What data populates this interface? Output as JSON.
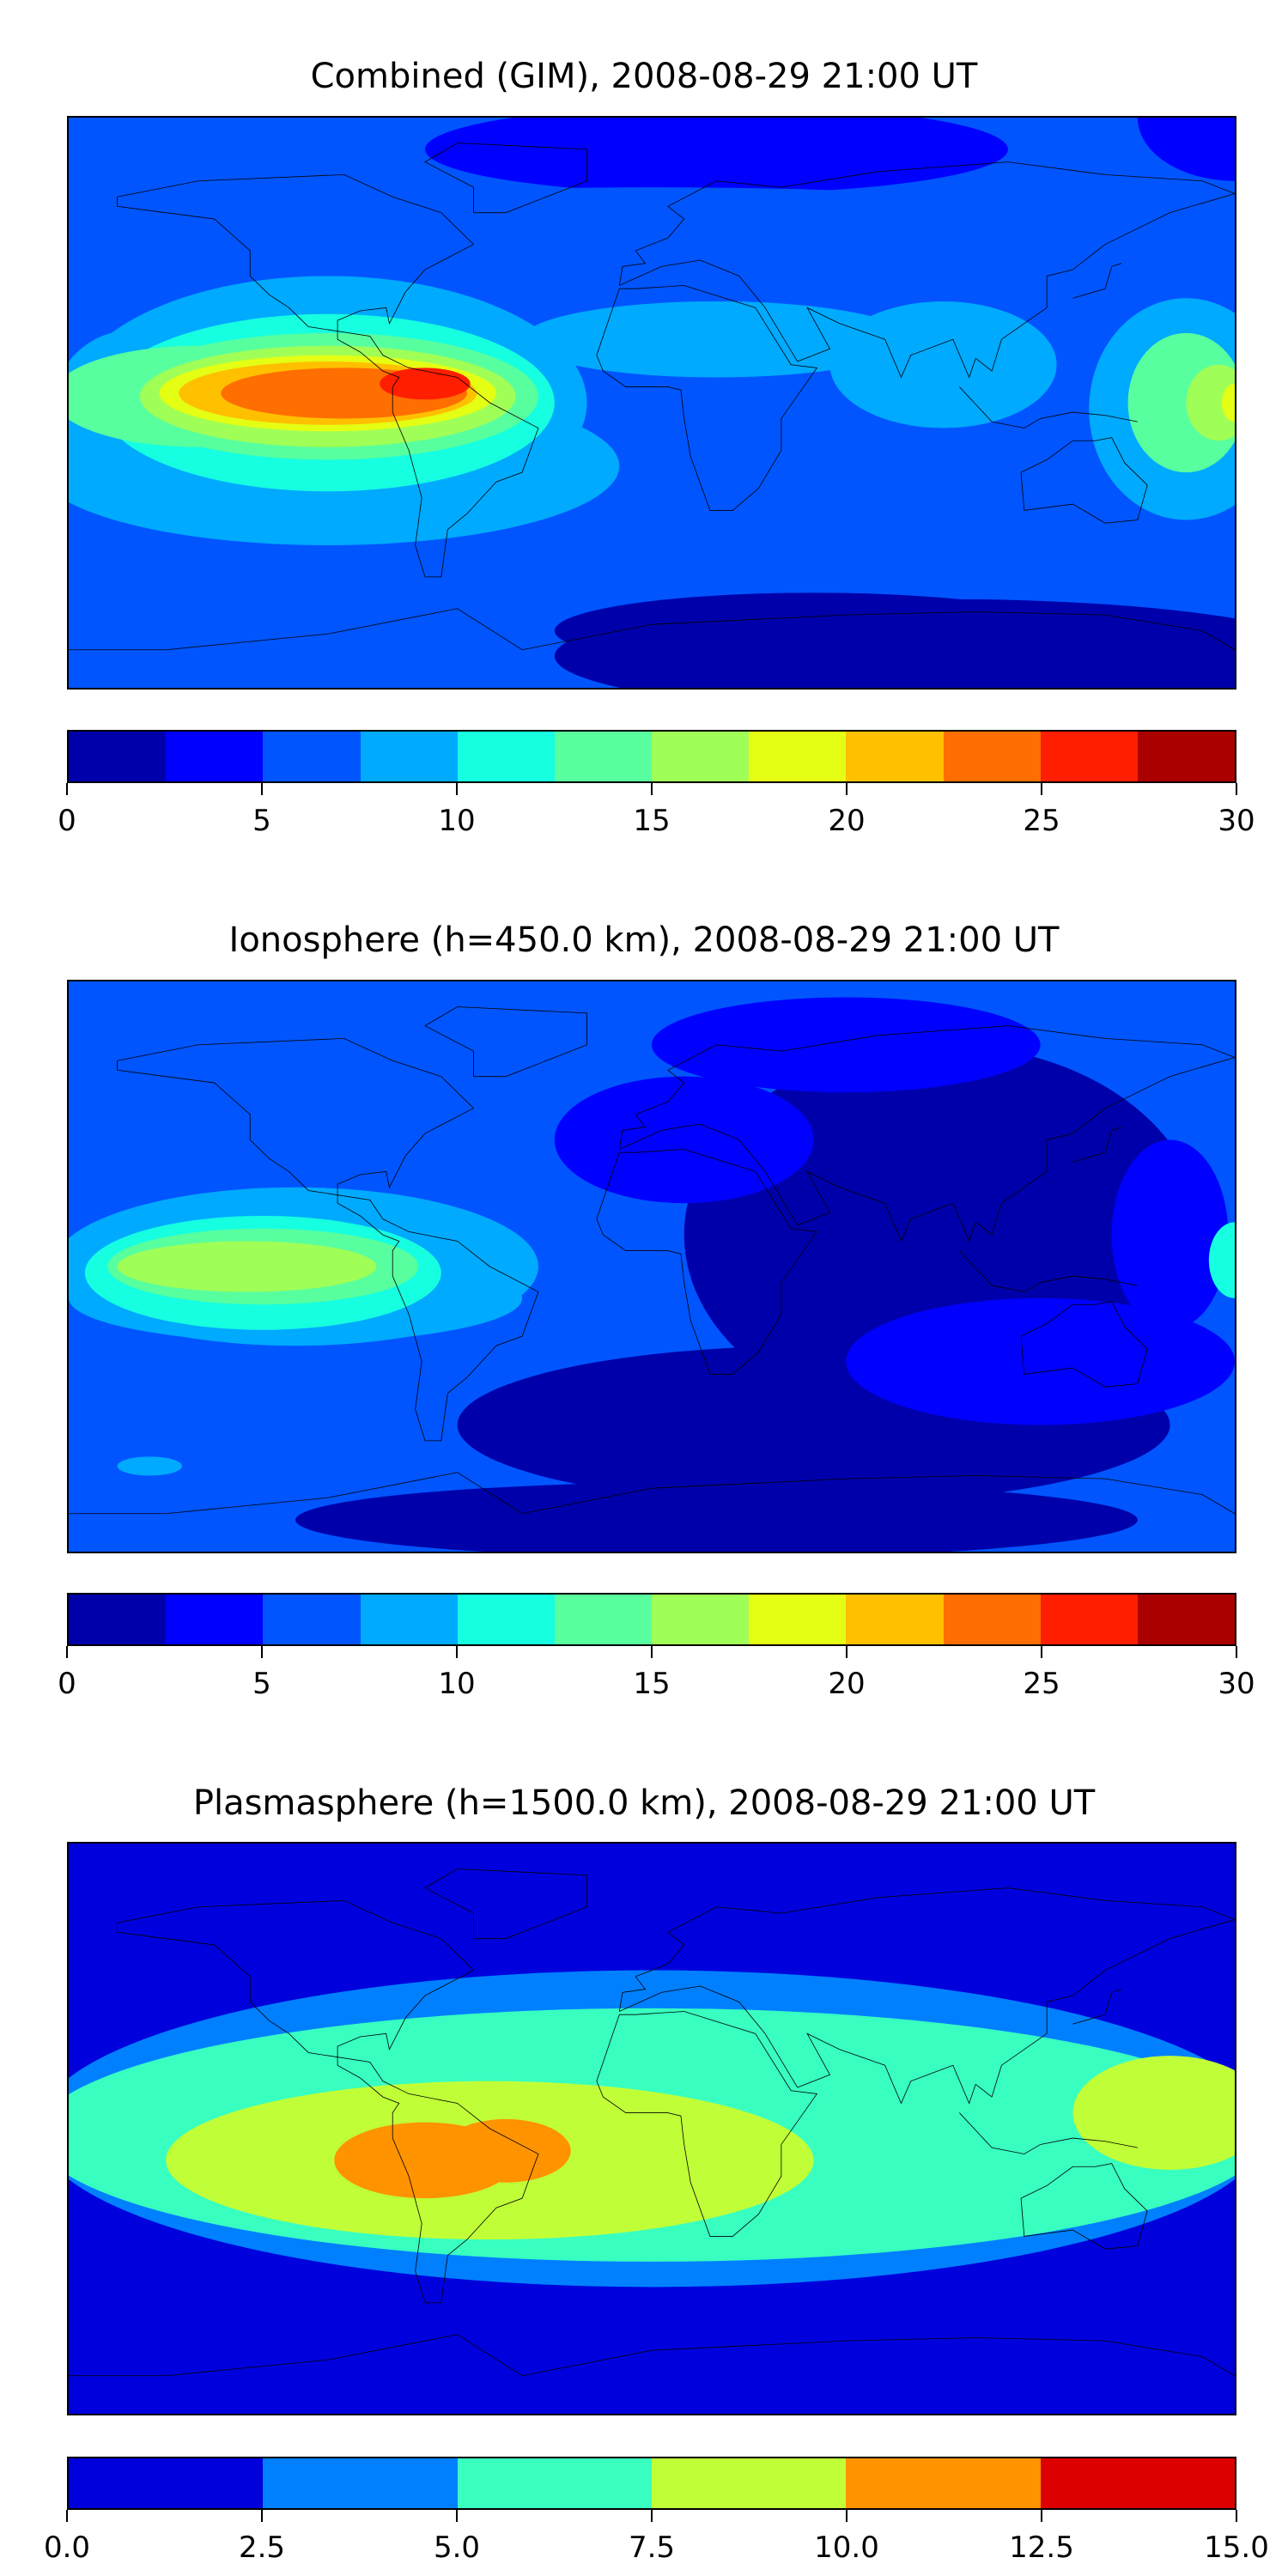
{
  "chart_data": [
    {
      "type": "heatmap",
      "title": "Combined (GIM), 2008-08-29 21:00 UT",
      "levels": [
        0,
        2.5,
        5,
        7.5,
        10,
        12.5,
        15,
        17.5,
        20,
        22.5,
        25,
        27.5,
        30
      ],
      "colors": [
        "#0000aa",
        "#0000ff",
        "#0055ff",
        "#00aaff",
        "#15ffe0",
        "#58ff9f",
        "#a0ff56",
        "#e4ff13",
        "#ffc000",
        "#ff6e00",
        "#ff1e00",
        "#ab0000"
      ],
      "ticks": [
        "0",
        "5",
        "10",
        "15",
        "20",
        "25",
        "30"
      ],
      "tick_values": [
        0,
        5,
        10,
        15,
        20,
        25,
        30
      ],
      "range": [
        0,
        30
      ]
    },
    {
      "type": "heatmap",
      "title": "Ionosphere  (h=450.0 km), 2008-08-29 21:00 UT",
      "levels": [
        0,
        2.5,
        5,
        7.5,
        10,
        12.5,
        15,
        17.5,
        20,
        22.5,
        25,
        27.5,
        30
      ],
      "colors": [
        "#0000aa",
        "#0000ff",
        "#0055ff",
        "#00aaff",
        "#15ffe0",
        "#58ff9f",
        "#a0ff56",
        "#e4ff13",
        "#ffc000",
        "#ff6e00",
        "#ff1e00",
        "#ab0000"
      ],
      "ticks": [
        "0",
        "5",
        "10",
        "15",
        "20",
        "25",
        "30"
      ],
      "tick_values": [
        0,
        5,
        10,
        15,
        20,
        25,
        30
      ],
      "range": [
        0,
        30
      ]
    },
    {
      "type": "heatmap",
      "title": "Plasmasphere (h=1500.0 km), 2008-08-29 21:00 UT",
      "levels": [
        0,
        2.5,
        5,
        7.5,
        10,
        12.5,
        15
      ],
      "colors": [
        "#0000dd",
        "#0080ff",
        "#38ffc0",
        "#c0ff38",
        "#ff9300",
        "#dd0000"
      ],
      "ticks": [
        "0.0",
        "2.5",
        "5.0",
        "7.5",
        "10.0",
        "12.5",
        "15.0"
      ],
      "tick_values": [
        0,
        2.5,
        5,
        7.5,
        10,
        12.5,
        15
      ],
      "range": [
        0,
        15
      ]
    }
  ]
}
